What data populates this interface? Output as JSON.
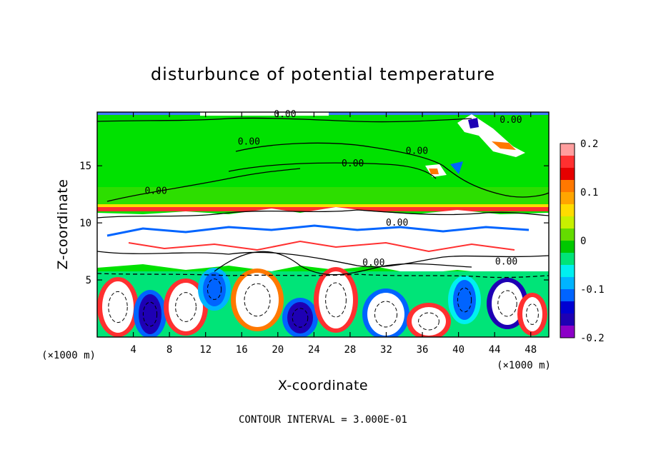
{
  "chart_data": {
    "type": "heatmap",
    "title": "disturbunce of potential temperature",
    "xlabel": "X-coordinate",
    "ylabel": "Z-coordinate",
    "x_unit": "(×1000 m)",
    "y_unit": "(×1000 m)",
    "xlim": [
      0,
      50
    ],
    "ylim": [
      0,
      19.7
    ],
    "x_ticks": [
      4,
      8,
      12,
      16,
      20,
      24,
      28,
      32,
      36,
      40,
      44,
      48
    ],
    "y_ticks": [
      5,
      10,
      15
    ],
    "colorbar": {
      "ticks": [
        0.2,
        0.1,
        0,
        -0.1,
        -0.2
      ],
      "range": [
        -0.2,
        0.2
      ],
      "colors": [
        "#ff9e9e",
        "#ff3030",
        "#e60000",
        "#ff7800",
        "#ffa500",
        "#ffdc00",
        "#c8f000",
        "#64dc00",
        "#00c800",
        "#00e478",
        "#00f0f0",
        "#00b4ff",
        "#0064ff",
        "#0000d2",
        "#1e00b4",
        "#8c00c8"
      ]
    },
    "contour_label": "0.00",
    "contour_labels": [
      {
        "text": "0.00",
        "x": 20.8,
        "y": 19.5
      },
      {
        "text": "0.00",
        "x": 45.8,
        "y": 19.0
      },
      {
        "text": "0.00",
        "x": 16.8,
        "y": 17.1
      },
      {
        "text": "0.00",
        "x": 35.4,
        "y": 16.3
      },
      {
        "text": "0.00",
        "x": 28.3,
        "y": 15.2
      },
      {
        "text": "0.00",
        "x": 6.5,
        "y": 12.8
      },
      {
        "text": "0.00",
        "x": 33.2,
        "y": 10.0
      },
      {
        "text": "0.00",
        "x": 30.6,
        "y": 6.5
      },
      {
        "text": "0.00",
        "x": 45.3,
        "y": 6.6
      }
    ],
    "footer": "CONTOUR INTERVAL = 3.000E-01"
  }
}
